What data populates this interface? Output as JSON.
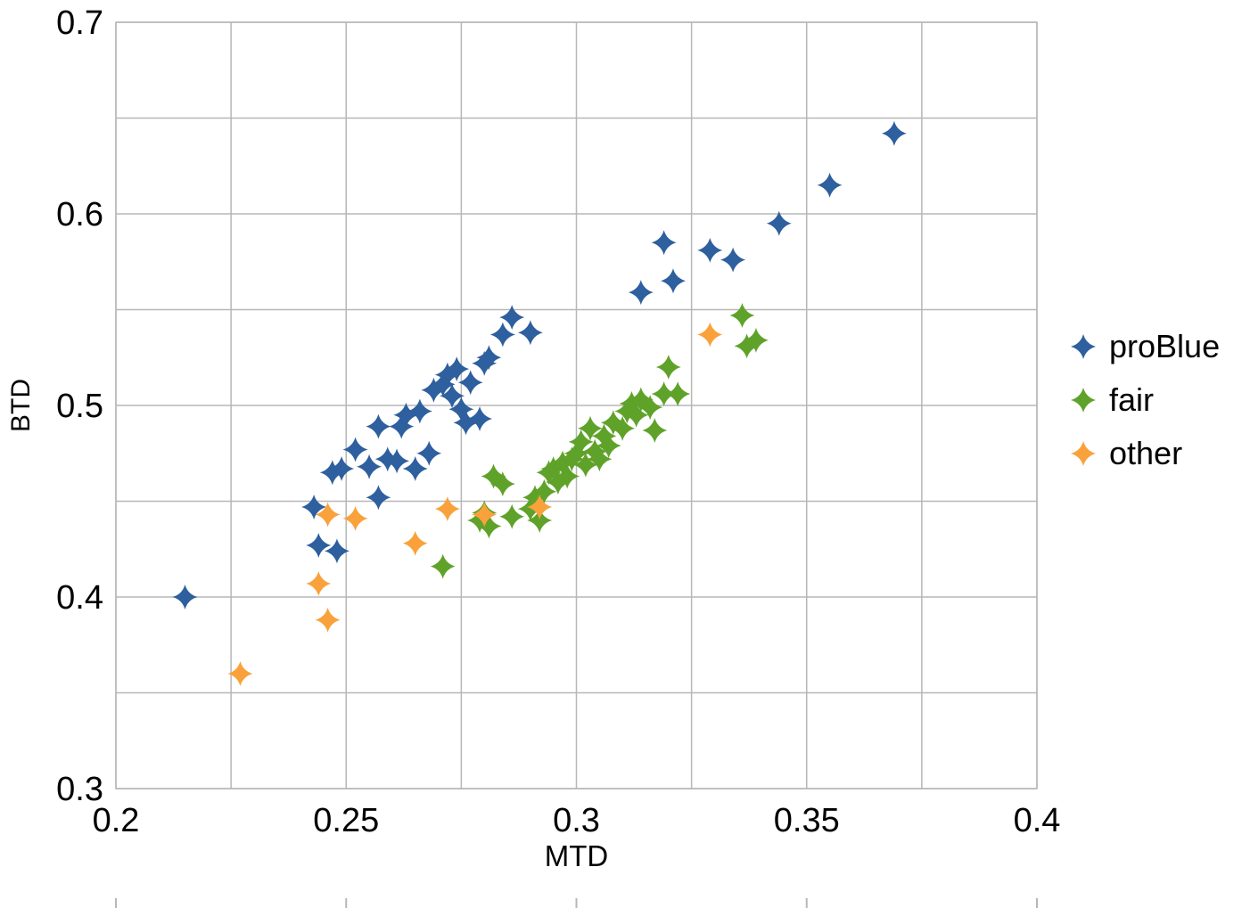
{
  "chart_data": {
    "type": "scatter",
    "title": "",
    "xlabel": "MTD",
    "ylabel": "BTD",
    "xlim": [
      0.2,
      0.4
    ],
    "ylim": [
      0.3,
      0.7
    ],
    "x_major_ticks": [
      0.2,
      0.25,
      0.3,
      0.35,
      0.4
    ],
    "x_tick_labels": [
      "0.2",
      "0.25",
      "0.3",
      "0.35",
      "0.4"
    ],
    "x_grid_step": 0.025,
    "y_major_ticks": [
      0.3,
      0.4,
      0.5,
      0.6,
      0.7
    ],
    "y_tick_labels": [
      "0.3",
      "0.4",
      "0.5",
      "0.6",
      "0.7"
    ],
    "y_grid_step": 0.05,
    "grid": true,
    "grid_color": "#b7b7b7",
    "legend_position": "right",
    "marker": "four-point-star",
    "series": [
      {
        "name": "proBlue",
        "color": "#2e5f9e",
        "points": [
          [
            0.215,
            0.4
          ],
          [
            0.243,
            0.447
          ],
          [
            0.244,
            0.427
          ],
          [
            0.248,
            0.424
          ],
          [
            0.247,
            0.465
          ],
          [
            0.249,
            0.467
          ],
          [
            0.252,
            0.477
          ],
          [
            0.255,
            0.468
          ],
          [
            0.257,
            0.452
          ],
          [
            0.257,
            0.489
          ],
          [
            0.259,
            0.472
          ],
          [
            0.261,
            0.471
          ],
          [
            0.262,
            0.489
          ],
          [
            0.263,
            0.495
          ],
          [
            0.265,
            0.467
          ],
          [
            0.266,
            0.497
          ],
          [
            0.268,
            0.475
          ],
          [
            0.269,
            0.508
          ],
          [
            0.271,
            0.511
          ],
          [
            0.272,
            0.516
          ],
          [
            0.273,
            0.505
          ],
          [
            0.274,
            0.519
          ],
          [
            0.275,
            0.498
          ],
          [
            0.276,
            0.491
          ],
          [
            0.277,
            0.512
          ],
          [
            0.279,
            0.493
          ],
          [
            0.28,
            0.522
          ],
          [
            0.281,
            0.525
          ],
          [
            0.284,
            0.537
          ],
          [
            0.286,
            0.546
          ],
          [
            0.29,
            0.538
          ],
          [
            0.314,
            0.559
          ],
          [
            0.319,
            0.585
          ],
          [
            0.321,
            0.565
          ],
          [
            0.329,
            0.581
          ],
          [
            0.334,
            0.576
          ],
          [
            0.344,
            0.595
          ],
          [
            0.355,
            0.615
          ],
          [
            0.369,
            0.642
          ]
        ]
      },
      {
        "name": "fair",
        "color": "#5fa229",
        "points": [
          [
            0.271,
            0.416
          ],
          [
            0.279,
            0.44
          ],
          [
            0.28,
            0.444
          ],
          [
            0.281,
            0.437
          ],
          [
            0.282,
            0.463
          ],
          [
            0.284,
            0.459
          ],
          [
            0.286,
            0.442
          ],
          [
            0.29,
            0.446
          ],
          [
            0.291,
            0.452
          ],
          [
            0.292,
            0.44
          ],
          [
            0.293,
            0.455
          ],
          [
            0.294,
            0.465
          ],
          [
            0.295,
            0.467
          ],
          [
            0.296,
            0.46
          ],
          [
            0.297,
            0.47
          ],
          [
            0.298,
            0.463
          ],
          [
            0.299,
            0.472
          ],
          [
            0.3,
            0.475
          ],
          [
            0.301,
            0.481
          ],
          [
            0.302,
            0.469
          ],
          [
            0.303,
            0.488
          ],
          [
            0.304,
            0.476
          ],
          [
            0.305,
            0.472
          ],
          [
            0.306,
            0.484
          ],
          [
            0.307,
            0.479
          ],
          [
            0.308,
            0.491
          ],
          [
            0.31,
            0.488
          ],
          [
            0.311,
            0.497
          ],
          [
            0.312,
            0.501
          ],
          [
            0.313,
            0.495
          ],
          [
            0.314,
            0.503
          ],
          [
            0.316,
            0.499
          ],
          [
            0.317,
            0.487
          ],
          [
            0.319,
            0.506
          ],
          [
            0.32,
            0.52
          ],
          [
            0.322,
            0.506
          ],
          [
            0.336,
            0.547
          ],
          [
            0.337,
            0.531
          ],
          [
            0.339,
            0.534
          ]
        ]
      },
      {
        "name": "other",
        "color": "#f9a23c",
        "points": [
          [
            0.227,
            0.36
          ],
          [
            0.246,
            0.388
          ],
          [
            0.244,
            0.407
          ],
          [
            0.246,
            0.443
          ],
          [
            0.252,
            0.441
          ],
          [
            0.265,
            0.428
          ],
          [
            0.272,
            0.446
          ],
          [
            0.28,
            0.443
          ],
          [
            0.292,
            0.447
          ],
          [
            0.329,
            0.537
          ]
        ]
      }
    ]
  }
}
